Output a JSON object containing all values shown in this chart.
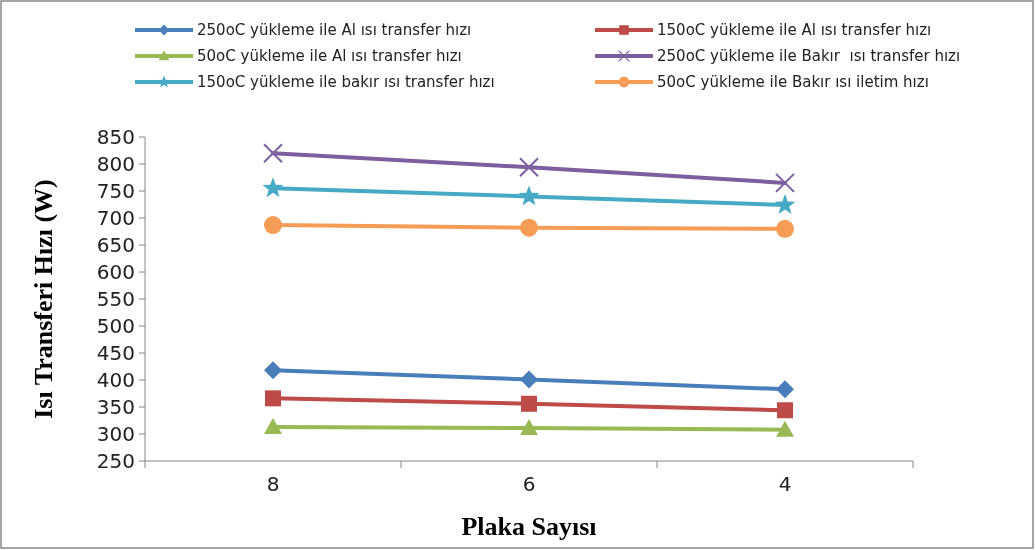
{
  "chart_data": {
    "type": "line",
    "xlabel": "Plaka Sayısı",
    "ylabel": "Isı Transferi Hızı (W)",
    "categories": [
      "8",
      "6",
      "4"
    ],
    "series": [
      {
        "name": "250oC yükleme ile Al ısı transfer hızı",
        "color": "#4a7ebb",
        "marker": "diamond",
        "values": [
          418,
          401,
          383
        ]
      },
      {
        "name": "150oC yükleme ile Al ısı transfer hızı",
        "color": "#be4b48",
        "marker": "square",
        "values": [
          366,
          356,
          344
        ]
      },
      {
        "name": "50oC yükleme ile Al ısı transfer hızı",
        "color": "#98b954",
        "marker": "triangle",
        "values": [
          313,
          311,
          308
        ]
      },
      {
        "name": "250oC yükleme ile Bakır  ısı transfer hızı",
        "color": "#7d5fa0",
        "marker": "cross",
        "values": [
          820,
          794,
          765
        ]
      },
      {
        "name": "150oC yükleme ile bakır ısı transfer hızı",
        "color": "#46aac5",
        "marker": "star",
        "values": [
          755,
          740,
          724
        ]
      },
      {
        "name": "50oC yükleme ile Bakır ısı iletim hızı",
        "color": "#f59d56",
        "marker": "circle",
        "values": [
          687,
          682,
          680
        ]
      }
    ],
    "ylim": [
      250,
      850
    ],
    "yticks": [
      250,
      300,
      350,
      400,
      450,
      500,
      550,
      600,
      650,
      700,
      750,
      800,
      850
    ],
    "grid": false,
    "legend": "top"
  }
}
